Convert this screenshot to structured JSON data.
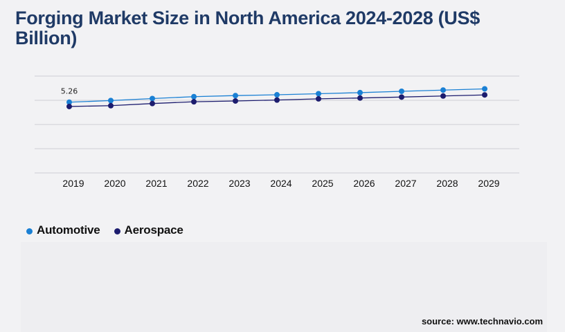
{
  "chart_data": {
    "type": "line",
    "title": "Forging Market Size in North America 2024-2028 (US$ Billion)",
    "xlabel": "",
    "ylabel": "",
    "categories": [
      "2019",
      "2020",
      "2021",
      "2022",
      "2023",
      "2024",
      "2025",
      "2026",
      "2027",
      "2028",
      "2029"
    ],
    "series": [
      {
        "name": "Automotive",
        "color": "#1a80d4",
        "values": [
          5.26,
          5.38,
          5.53,
          5.67,
          5.75,
          5.81,
          5.89,
          5.97,
          6.07,
          6.16,
          6.25
        ]
      },
      {
        "name": "Aerospace",
        "color": "#1c1c6e",
        "values": [
          4.94,
          5.0,
          5.16,
          5.29,
          5.35,
          5.42,
          5.51,
          5.57,
          5.64,
          5.72,
          5.8
        ]
      }
    ],
    "data_labels": [
      {
        "series": 0,
        "index": 0,
        "text": "5.26"
      }
    ],
    "ylim": [
      0,
      7.2
    ],
    "grid": true,
    "legend_position": "bottom-left"
  },
  "source": "source: www.technavio.com"
}
